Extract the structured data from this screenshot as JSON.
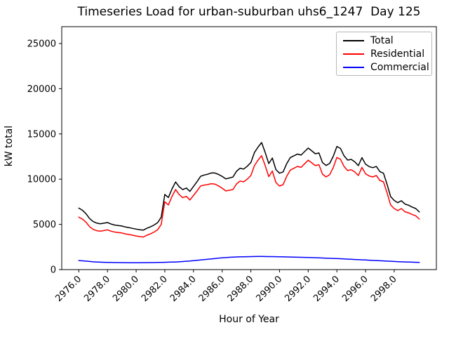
{
  "chart_data": {
    "type": "line",
    "title": "Timeseries Load for urban-suburban uhs6_1247  Day 125",
    "xlabel": "Hour of Year",
    "ylabel": "kW total",
    "xlim": [
      2974.81,
      3000.94
    ],
    "ylim": [
      0,
      26860
    ],
    "grid": false,
    "legend_position": "upper right",
    "x_tick_rotation": -45,
    "x_ticks": [
      2976,
      2978,
      2980,
      2982,
      2984,
      2986,
      2988,
      2990,
      2992,
      2994,
      2996,
      2998
    ],
    "x_tick_labels": [
      "2976.0",
      "2978.0",
      "2980.0",
      "2982.0",
      "2984.0",
      "2986.0",
      "2988.0",
      "2990.0",
      "2992.0",
      "2994.0",
      "2996.0",
      "2998.0"
    ],
    "y_ticks": [
      0,
      5000,
      10000,
      15000,
      20000,
      25000
    ],
    "y_tick_labels": [
      "0",
      "5000",
      "10000",
      "15000",
      "20000",
      "25000"
    ],
    "x_start": 2976.0,
    "x_step": 0.25,
    "series": [
      {
        "name": "Total",
        "color": "#000000",
        "values": [
          6800,
          6570,
          6190,
          5650,
          5310,
          5140,
          5070,
          5130,
          5200,
          5040,
          4930,
          4875,
          4820,
          4715,
          4640,
          4560,
          4480,
          4410,
          4365,
          4570,
          4725,
          4930,
          5190,
          5800,
          8310,
          7970,
          8930,
          9690,
          9160,
          8840,
          9020,
          8650,
          9190,
          9730,
          10320,
          10460,
          10550,
          10690,
          10680,
          10520,
          10300,
          10030,
          10130,
          10230,
          10870,
          11210,
          11120,
          11430,
          11840,
          12945,
          13550,
          14050,
          12945,
          11720,
          12335,
          11055,
          10660,
          10800,
          11700,
          12390,
          12580,
          12780,
          12660,
          13050,
          13440,
          13125,
          12810,
          12895,
          11830,
          11515,
          11750,
          12535,
          13620,
          13400,
          12580,
          12110,
          12190,
          11920,
          11500,
          12380,
          11660,
          11390,
          11270,
          11400,
          10840,
          10660,
          9440,
          8070,
          7650,
          7400,
          7615,
          7250,
          7115,
          6920,
          6755,
          6380
        ]
      },
      {
        "name": "Residential",
        "color": "#ff0000",
        "values": [
          5800,
          5600,
          5250,
          4750,
          4450,
          4300,
          4250,
          4320,
          4400,
          4250,
          4150,
          4100,
          4050,
          3950,
          3880,
          3800,
          3720,
          3650,
          3600,
          3800,
          3950,
          4150,
          4400,
          5000,
          7500,
          7150,
          8100,
          8850,
          8300,
          7950,
          8100,
          7700,
          8200,
          8700,
          9250,
          9350,
          9400,
          9500,
          9450,
          9250,
          9000,
          8700,
          8770,
          8850,
          9470,
          9800,
          9700,
          10000,
          10400,
          11500,
          12100,
          12600,
          11500,
          10280,
          10900,
          9625,
          9240,
          9390,
          10300,
          11000,
          11200,
          11410,
          11300,
          11700,
          12100,
          11800,
          11500,
          11600,
          10550,
          10250,
          10500,
          11300,
          12400,
          12200,
          11400,
          10950,
          11050,
          10800,
          10400,
          11300,
          10600,
          10350,
          10250,
          10400,
          9860,
          9700,
          8500,
          7150,
          6750,
          6520,
          6750,
          6400,
          6280,
          6100,
          5950,
          5590
        ]
      },
      {
        "name": "Commercial",
        "color": "#0000ff",
        "values": [
          1000,
          970,
          940,
          900,
          860,
          840,
          820,
          810,
          800,
          790,
          780,
          775,
          770,
          765,
          760,
          760,
          760,
          760,
          765,
          770,
          775,
          780,
          790,
          800,
          810,
          820,
          830,
          840,
          860,
          890,
          920,
          950,
          990,
          1030,
          1070,
          1110,
          1150,
          1190,
          1230,
          1270,
          1300,
          1330,
          1360,
          1380,
          1400,
          1410,
          1420,
          1430,
          1440,
          1445,
          1450,
          1450,
          1445,
          1440,
          1435,
          1430,
          1420,
          1410,
          1400,
          1390,
          1380,
          1370,
          1360,
          1350,
          1340,
          1325,
          1310,
          1295,
          1280,
          1265,
          1250,
          1235,
          1220,
          1200,
          1180,
          1160,
          1140,
          1120,
          1100,
          1080,
          1060,
          1040,
          1020,
          1000,
          980,
          960,
          940,
          920,
          900,
          880,
          865,
          850,
          835,
          820,
          805,
          790
        ]
      }
    ]
  }
}
